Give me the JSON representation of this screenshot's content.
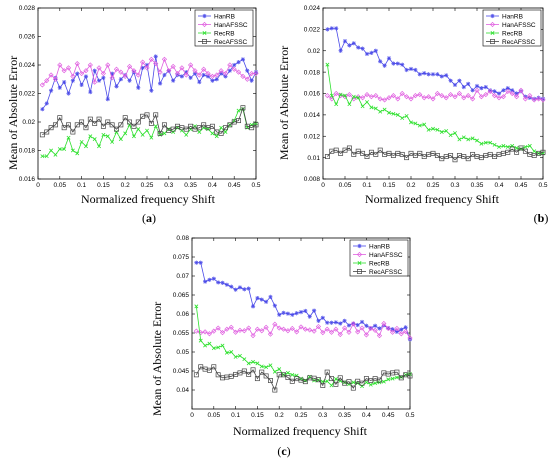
{
  "charts": [
    {
      "caption_open": "(",
      "caption_letter": "a",
      "caption_close": ")",
      "chart_data": {
        "type": "line",
        "xlabel": "Normalized frequency Shift",
        "ylabel": "Mean of Absolute Error",
        "xlim": [
          0,
          0.5
        ],
        "ylim": [
          0.016,
          0.028
        ],
        "xticks": [
          "0",
          "0.05",
          "0.1",
          "0.15",
          "0.2",
          "0.25",
          "0.3",
          "0.35",
          "0.4",
          "0.45",
          "0.5"
        ],
        "yticks": [
          "0.016",
          "0.018",
          "0.02",
          "0.022",
          "0.024",
          "0.026",
          "0.028"
        ],
        "legend_position": "top-right",
        "x": [
          0.01,
          0.02,
          0.03,
          0.04,
          0.05,
          0.06,
          0.07,
          0.08,
          0.09,
          0.1,
          0.11,
          0.12,
          0.13,
          0.14,
          0.15,
          0.16,
          0.17,
          0.18,
          0.19,
          0.2,
          0.21,
          0.22,
          0.23,
          0.24,
          0.25,
          0.26,
          0.27,
          0.28,
          0.29,
          0.3,
          0.31,
          0.32,
          0.33,
          0.34,
          0.35,
          0.36,
          0.37,
          0.38,
          0.39,
          0.4,
          0.41,
          0.42,
          0.43,
          0.44,
          0.45,
          0.46,
          0.47,
          0.48,
          0.49,
          0.5
        ],
        "series": [
          {
            "name": "HanRB",
            "color": "#4a4ae8",
            "marker": "star",
            "values": [
              0.0209,
              0.0213,
              0.0222,
              0.0231,
              0.0224,
              0.0228,
              0.022,
              0.0229,
              0.0234,
              0.0226,
              0.0232,
              0.0221,
              0.0236,
              0.0229,
              0.0231,
              0.0216,
              0.0234,
              0.0225,
              0.023,
              0.0233,
              0.0229,
              0.0235,
              0.0224,
              0.0238,
              0.024,
              0.0222,
              0.0246,
              0.0227,
              0.0233,
              0.0236,
              0.0229,
              0.0233,
              0.0232,
              0.0235,
              0.0231,
              0.0234,
              0.0228,
              0.0233,
              0.0232,
              0.0229,
              0.023,
              0.0234,
              0.0232,
              0.0236,
              0.024,
              0.0242,
              0.0244,
              0.0236,
              0.0229,
              0.0235
            ]
          },
          {
            "name": "HanAFSSC",
            "color": "#e060e0",
            "marker": "diamond",
            "values": [
              0.0226,
              0.0229,
              0.0233,
              0.023,
              0.024,
              0.0236,
              0.0238,
              0.0232,
              0.0241,
              0.0234,
              0.0236,
              0.024,
              0.0228,
              0.0238,
              0.0234,
              0.024,
              0.0231,
              0.0237,
              0.0235,
              0.0232,
              0.0239,
              0.0236,
              0.0233,
              0.0242,
              0.0238,
              0.0244,
              0.0241,
              0.0235,
              0.0244,
              0.0236,
              0.0239,
              0.0234,
              0.0238,
              0.0233,
              0.024,
              0.0236,
              0.0233,
              0.0237,
              0.0234,
              0.0232,
              0.0233,
              0.0236,
              0.0234,
              0.024,
              0.0237,
              0.0235,
              0.0232,
              0.023,
              0.0234,
              0.0234
            ]
          },
          {
            "name": "RecRB",
            "color": "#2ee02e",
            "marker": "cross",
            "values": [
              0.0176,
              0.0176,
              0.018,
              0.0177,
              0.0181,
              0.0181,
              0.0189,
              0.018,
              0.0178,
              0.0186,
              0.0183,
              0.019,
              0.0188,
              0.0183,
              0.0191,
              0.019,
              0.0186,
              0.0193,
              0.0188,
              0.0192,
              0.0198,
              0.019,
              0.0195,
              0.0191,
              0.0194,
              0.0189,
              0.0197,
              0.0191,
              0.0192,
              0.0195,
              0.0193,
              0.0196,
              0.0194,
              0.0191,
              0.0195,
              0.0197,
              0.0193,
              0.0196,
              0.0195,
              0.0192,
              0.019,
              0.0196,
              0.0193,
              0.0198,
              0.0201,
              0.0208,
              0.0209,
              0.0196,
              0.0198,
              0.0199
            ]
          },
          {
            "name": "RecAFSSC",
            "color": "#444444",
            "marker": "square",
            "values": [
              0.0191,
              0.0193,
              0.0196,
              0.0198,
              0.0203,
              0.0196,
              0.0198,
              0.0193,
              0.0198,
              0.02,
              0.0196,
              0.0202,
              0.0199,
              0.0202,
              0.0197,
              0.02,
              0.0198,
              0.0195,
              0.0198,
              0.0203,
              0.02,
              0.0197,
              0.02,
              0.0204,
              0.0205,
              0.0199,
              0.0205,
              0.0192,
              0.0198,
              0.0194,
              0.0195,
              0.0197,
              0.0196,
              0.0195,
              0.0197,
              0.0195,
              0.0196,
              0.0198,
              0.0196,
              0.0197,
              0.0193,
              0.0192,
              0.0196,
              0.0198,
              0.02,
              0.0201,
              0.021,
              0.0197,
              0.0196,
              0.0198
            ]
          }
        ]
      }
    },
    {
      "caption_open": "(",
      "caption_letter": "b",
      "caption_close": ")",
      "chart_data": {
        "type": "line",
        "xlabel": "Normalized frequency Shift",
        "ylabel": "Mean of Absolute Error",
        "xlim": [
          0,
          0.5
        ],
        "ylim": [
          0.008,
          0.024
        ],
        "xticks": [
          "0",
          "0.05",
          "0.1",
          "0.15",
          "0.2",
          "0.25",
          "0.3",
          "0.35",
          "0.4",
          "0.45",
          "0.5"
        ],
        "yticks": [
          "0.008",
          "0.01",
          "0.012",
          "0.014",
          "0.016",
          "0.018",
          "0.02",
          "0.022",
          "0.024"
        ],
        "legend_position": "top-right",
        "x": [
          0.01,
          0.02,
          0.03,
          0.04,
          0.05,
          0.06,
          0.07,
          0.08,
          0.09,
          0.1,
          0.11,
          0.12,
          0.13,
          0.14,
          0.15,
          0.16,
          0.17,
          0.18,
          0.19,
          0.2,
          0.21,
          0.22,
          0.23,
          0.24,
          0.25,
          0.26,
          0.27,
          0.28,
          0.29,
          0.3,
          0.31,
          0.32,
          0.33,
          0.34,
          0.35,
          0.36,
          0.37,
          0.38,
          0.39,
          0.4,
          0.41,
          0.42,
          0.43,
          0.44,
          0.45,
          0.46,
          0.47,
          0.48,
          0.49,
          0.5
        ],
        "series": [
          {
            "name": "HanRB",
            "color": "#4a4ae8",
            "marker": "star",
            "values": [
              0.022,
              0.0221,
              0.0221,
              0.02,
              0.0209,
              0.0205,
              0.0207,
              0.0203,
              0.0202,
              0.0197,
              0.0198,
              0.02,
              0.019,
              0.0186,
              0.0193,
              0.0188,
              0.0188,
              0.0187,
              0.0182,
              0.0183,
              0.0182,
              0.0178,
              0.0179,
              0.0178,
              0.0178,
              0.0178,
              0.0176,
              0.0177,
              0.0172,
              0.0168,
              0.0172,
              0.0166,
              0.0169,
              0.0163,
              0.0167,
              0.0165,
              0.0166,
              0.0163,
              0.0162,
              0.016,
              0.0163,
              0.0165,
              0.0163,
              0.016,
              0.0162,
              0.0157,
              0.0156,
              0.0155,
              0.0156,
              0.0155
            ]
          },
          {
            "name": "HanAFSSC",
            "color": "#e060e0",
            "marker": "diamond",
            "values": [
              0.0158,
              0.0155,
              0.016,
              0.0158,
              0.0157,
              0.0159,
              0.0155,
              0.0157,
              0.0156,
              0.0159,
              0.0157,
              0.0158,
              0.0155,
              0.0154,
              0.0156,
              0.0158,
              0.0155,
              0.016,
              0.0157,
              0.0155,
              0.0158,
              0.0159,
              0.0156,
              0.0157,
              0.0155,
              0.016,
              0.0158,
              0.0156,
              0.0159,
              0.0157,
              0.016,
              0.0156,
              0.0158,
              0.0155,
              0.0163,
              0.0157,
              0.0159,
              0.0162,
              0.0158,
              0.0156,
              0.0157,
              0.0162,
              0.016,
              0.0157,
              0.0163,
              0.0155,
              0.0158,
              0.0154,
              0.0155,
              0.0154
            ]
          },
          {
            "name": "RecRB",
            "color": "#2ee02e",
            "marker": "cross",
            "values": [
              0.0187,
              0.0158,
              0.015,
              0.0159,
              0.0158,
              0.015,
              0.0157,
              0.0156,
              0.0148,
              0.0152,
              0.0147,
              0.0146,
              0.0143,
              0.0145,
              0.0142,
              0.0141,
              0.014,
              0.0137,
              0.0139,
              0.0133,
              0.0132,
              0.013,
              0.0131,
              0.0126,
              0.0127,
              0.0126,
              0.0124,
              0.0125,
              0.0121,
              0.0123,
              0.0117,
              0.0119,
              0.0117,
              0.0118,
              0.0116,
              0.0113,
              0.0114,
              0.0114,
              0.0112,
              0.011,
              0.0111,
              0.011,
              0.0111,
              0.0109,
              0.0108,
              0.011,
              0.0111,
              0.0106,
              0.0104,
              0.0104
            ]
          },
          {
            "name": "RecAFSSC",
            "color": "#444444",
            "marker": "square",
            "values": [
              0.0101,
              0.0106,
              0.0107,
              0.0104,
              0.0107,
              0.0109,
              0.0103,
              0.0106,
              0.0104,
              0.0101,
              0.0105,
              0.0103,
              0.0107,
              0.0103,
              0.0104,
              0.0102,
              0.0104,
              0.0103,
              0.01,
              0.0104,
              0.0102,
              0.0104,
              0.0101,
              0.0103,
              0.0104,
              0.0102,
              0.0099,
              0.0101,
              0.0102,
              0.0098,
              0.0102,
              0.0101,
              0.0099,
              0.0103,
              0.0101,
              0.01,
              0.0102,
              0.0103,
              0.0101,
              0.0103,
              0.0104,
              0.0105,
              0.0108,
              0.0105,
              0.0109,
              0.0106,
              0.0103,
              0.0102,
              0.0104,
              0.0105
            ]
          }
        ]
      }
    },
    {
      "caption_open": "(",
      "caption_letter": "c",
      "caption_close": ")",
      "chart_data": {
        "type": "line",
        "xlabel": "Normalized frequency Shift",
        "ylabel": "Mean of Absolute Error",
        "xlim": [
          0,
          0.5
        ],
        "ylim": [
          0.035,
          0.08
        ],
        "xticks": [
          "0",
          "0.05",
          "0.1",
          "0.15",
          "0.2",
          "0.25",
          "0.3",
          "0.35",
          "0.4",
          "0.45",
          "0.5"
        ],
        "yticks": [
          "0.04",
          "0.045",
          "0.05",
          "0.055",
          "0.06",
          "0.065",
          "0.07",
          "0.075",
          "0.08"
        ],
        "legend_position": "top-right",
        "x": [
          0.01,
          0.02,
          0.03,
          0.04,
          0.05,
          0.06,
          0.07,
          0.08,
          0.09,
          0.1,
          0.11,
          0.12,
          0.13,
          0.14,
          0.15,
          0.16,
          0.17,
          0.18,
          0.19,
          0.2,
          0.21,
          0.22,
          0.23,
          0.24,
          0.25,
          0.26,
          0.27,
          0.28,
          0.29,
          0.3,
          0.31,
          0.32,
          0.33,
          0.34,
          0.35,
          0.36,
          0.37,
          0.38,
          0.39,
          0.4,
          0.41,
          0.42,
          0.43,
          0.44,
          0.45,
          0.46,
          0.47,
          0.48,
          0.49,
          0.5
        ],
        "series": [
          {
            "name": "HanRB",
            "color": "#4a4ae8",
            "marker": "star",
            "values": [
              0.0735,
              0.0735,
              0.0685,
              0.069,
              0.0693,
              0.0683,
              0.0682,
              0.0677,
              0.0672,
              0.0664,
              0.067,
              0.0665,
              0.0667,
              0.062,
              0.0642,
              0.0638,
              0.0632,
              0.0645,
              0.0622,
              0.0598,
              0.0603,
              0.0601,
              0.0598,
              0.0602,
              0.0605,
              0.0608,
              0.0593,
              0.0609,
              0.0582,
              0.059,
              0.0577,
              0.0577,
              0.0578,
              0.0575,
              0.0582,
              0.057,
              0.0575,
              0.0571,
              0.0579,
              0.0569,
              0.0563,
              0.0569,
              0.0562,
              0.057,
              0.0563,
              0.056,
              0.0553,
              0.0559,
              0.0565,
              0.0533
            ]
          },
          {
            "name": "HanAFSSC",
            "color": "#e060e0",
            "marker": "diamond",
            "values": [
              0.0555,
              0.0551,
              0.0553,
              0.0548,
              0.0555,
              0.0563,
              0.0551,
              0.056,
              0.0565,
              0.0552,
              0.0557,
              0.0556,
              0.0563,
              0.0543,
              0.056,
              0.0556,
              0.0565,
              0.0547,
              0.0573,
              0.0563,
              0.056,
              0.0556,
              0.0562,
              0.0553,
              0.0566,
              0.056,
              0.0558,
              0.0555,
              0.0567,
              0.0551,
              0.056,
              0.0552,
              0.056,
              0.0546,
              0.0563,
              0.0552,
              0.0574,
              0.0553,
              0.0563,
              0.0545,
              0.0562,
              0.0557,
              0.0543,
              0.0575,
              0.0562,
              0.0552,
              0.0562,
              0.0548,
              0.0554,
              0.0537
            ]
          },
          {
            "name": "RecRB",
            "color": "#2ee02e",
            "marker": "cross",
            "values": [
              0.062,
              0.053,
              0.0517,
              0.0522,
              0.051,
              0.0512,
              0.0517,
              0.0498,
              0.05,
              0.0487,
              0.049,
              0.0481,
              0.047,
              0.0474,
              0.047,
              0.0462,
              0.046,
              0.0465,
              0.0448,
              0.0455,
              0.044,
              0.0445,
              0.044,
              0.0438,
              0.043,
              0.0425,
              0.0435,
              0.0425,
              0.0426,
              0.0422,
              0.0423,
              0.0412,
              0.0429,
              0.0424,
              0.042,
              0.0415,
              0.042,
              0.0418,
              0.041,
              0.042,
              0.0414,
              0.0418,
              0.042,
              0.0422,
              0.0428,
              0.043,
              0.0433,
              0.0434,
              0.044,
              0.0442
            ]
          },
          {
            "name": "RecAFSSC",
            "color": "#444444",
            "marker": "square",
            "values": [
              0.044,
              0.0461,
              0.0455,
              0.0452,
              0.0461,
              0.044,
              0.0432,
              0.0434,
              0.0436,
              0.0441,
              0.0445,
              0.045,
              0.0441,
              0.0453,
              0.043,
              0.0447,
              0.0437,
              0.0425,
              0.04,
              0.044,
              0.044,
              0.0433,
              0.0423,
              0.043,
              0.0426,
              0.0422,
              0.0432,
              0.0431,
              0.0427,
              0.0412,
              0.0447,
              0.043,
              0.0415,
              0.0432,
              0.0418,
              0.0422,
              0.0405,
              0.0423,
              0.0418,
              0.043,
              0.0425,
              0.043,
              0.0426,
              0.0445,
              0.0442,
              0.0445,
              0.0447,
              0.0432,
              0.044,
              0.0437
            ]
          }
        ]
      }
    }
  ]
}
